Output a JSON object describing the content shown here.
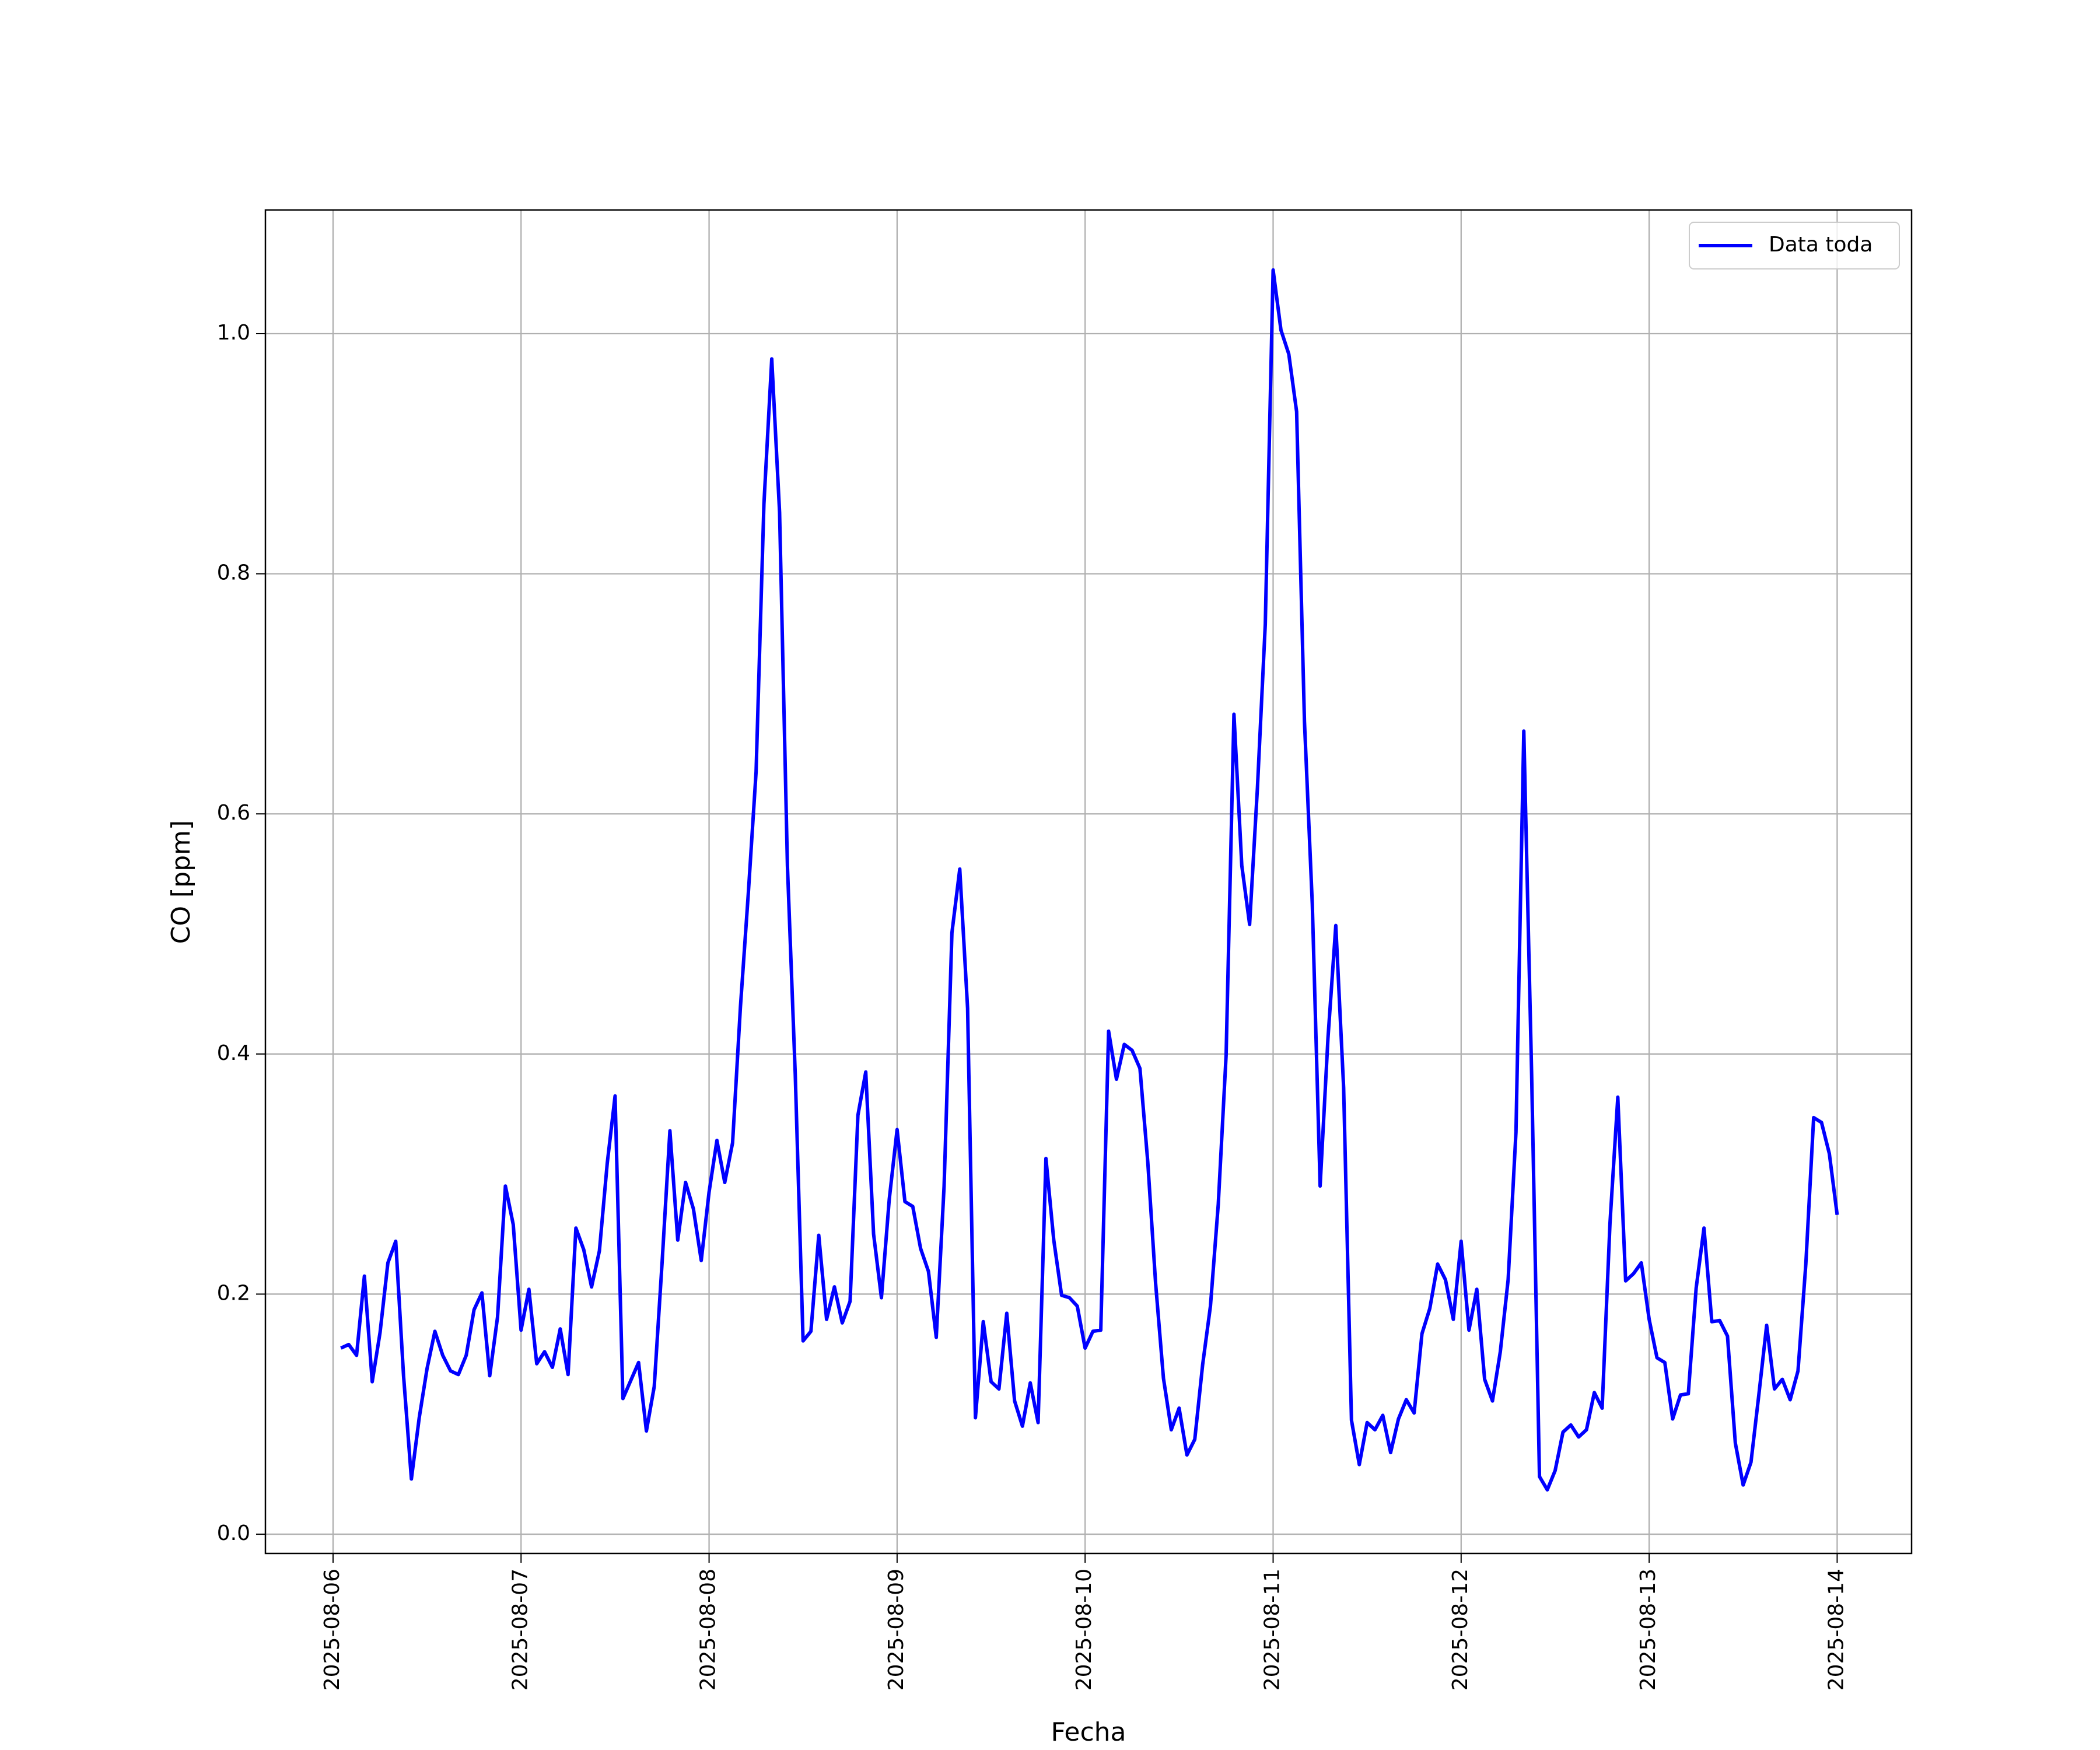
{
  "chart_data": {
    "type": "line",
    "xlabel": "Fecha",
    "ylabel": "CO [ppm]",
    "x": [
      "2025-08-06 01:00",
      "2025-08-06 02:00",
      "2025-08-06 03:00",
      "2025-08-06 04:00",
      "2025-08-06 05:00",
      "2025-08-06 06:00",
      "2025-08-06 07:00",
      "2025-08-06 08:00",
      "2025-08-06 09:00",
      "2025-08-06 10:00",
      "2025-08-06 11:00",
      "2025-08-06 12:00",
      "2025-08-06 13:00",
      "2025-08-06 14:00",
      "2025-08-06 15:00",
      "2025-08-06 16:00",
      "2025-08-06 17:00",
      "2025-08-06 18:00",
      "2025-08-06 19:00",
      "2025-08-06 20:00",
      "2025-08-06 21:00",
      "2025-08-06 22:00",
      "2025-08-06 23:00",
      "2025-08-07 00:00",
      "2025-08-07 01:00",
      "2025-08-07 02:00",
      "2025-08-07 03:00",
      "2025-08-07 04:00",
      "2025-08-07 05:00",
      "2025-08-07 06:00",
      "2025-08-07 07:00",
      "2025-08-07 08:00",
      "2025-08-07 09:00",
      "2025-08-07 10:00",
      "2025-08-07 11:00",
      "2025-08-07 12:00",
      "2025-08-07 13:00",
      "2025-08-07 14:00",
      "2025-08-07 15:00",
      "2025-08-07 16:00",
      "2025-08-07 17:00",
      "2025-08-07 18:00",
      "2025-08-07 19:00",
      "2025-08-07 20:00",
      "2025-08-07 21:00",
      "2025-08-07 22:00",
      "2025-08-07 23:00",
      "2025-08-08 00:00",
      "2025-08-08 01:00",
      "2025-08-08 02:00",
      "2025-08-08 03:00",
      "2025-08-08 04:00",
      "2025-08-08 05:00",
      "2025-08-08 06:00",
      "2025-08-08 07:00",
      "2025-08-08 08:00",
      "2025-08-08 09:00",
      "2025-08-08 10:00",
      "2025-08-08 11:00",
      "2025-08-08 12:00",
      "2025-08-08 13:00",
      "2025-08-08 14:00",
      "2025-08-08 15:00",
      "2025-08-08 16:00",
      "2025-08-08 17:00",
      "2025-08-08 18:00",
      "2025-08-08 19:00",
      "2025-08-08 20:00",
      "2025-08-08 21:00",
      "2025-08-08 22:00",
      "2025-08-08 23:00",
      "2025-08-09 00:00",
      "2025-08-09 01:00",
      "2025-08-09 02:00",
      "2025-08-09 03:00",
      "2025-08-09 04:00",
      "2025-08-09 05:00",
      "2025-08-09 06:00",
      "2025-08-09 07:00",
      "2025-08-09 08:00",
      "2025-08-09 09:00",
      "2025-08-09 10:00",
      "2025-08-09 11:00",
      "2025-08-09 12:00",
      "2025-08-09 13:00",
      "2025-08-09 14:00",
      "2025-08-09 15:00",
      "2025-08-09 16:00",
      "2025-08-09 17:00",
      "2025-08-09 18:00",
      "2025-08-09 19:00",
      "2025-08-09 20:00",
      "2025-08-09 21:00",
      "2025-08-09 22:00",
      "2025-08-09 23:00",
      "2025-08-10 00:00",
      "2025-08-10 01:00",
      "2025-08-10 02:00",
      "2025-08-10 03:00",
      "2025-08-10 04:00",
      "2025-08-10 05:00",
      "2025-08-10 06:00",
      "2025-08-10 07:00",
      "2025-08-10 08:00",
      "2025-08-10 09:00",
      "2025-08-10 10:00",
      "2025-08-10 11:00",
      "2025-08-10 12:00",
      "2025-08-10 13:00",
      "2025-08-10 14:00",
      "2025-08-10 15:00",
      "2025-08-10 16:00",
      "2025-08-10 17:00",
      "2025-08-10 18:00",
      "2025-08-10 19:00",
      "2025-08-10 20:00",
      "2025-08-10 21:00",
      "2025-08-10 22:00",
      "2025-08-10 23:00",
      "2025-08-11 00:00",
      "2025-08-11 01:00",
      "2025-08-11 02:00",
      "2025-08-11 03:00",
      "2025-08-11 04:00",
      "2025-08-11 05:00",
      "2025-08-11 06:00",
      "2025-08-11 07:00",
      "2025-08-11 08:00",
      "2025-08-11 09:00",
      "2025-08-11 10:00",
      "2025-08-11 11:00",
      "2025-08-11 12:00",
      "2025-08-11 13:00",
      "2025-08-11 14:00",
      "2025-08-11 15:00",
      "2025-08-11 16:00",
      "2025-08-11 17:00",
      "2025-08-11 18:00",
      "2025-08-11 19:00",
      "2025-08-11 20:00",
      "2025-08-11 21:00",
      "2025-08-11 22:00",
      "2025-08-11 23:00",
      "2025-08-12 00:00",
      "2025-08-12 01:00",
      "2025-08-12 02:00",
      "2025-08-12 03:00",
      "2025-08-12 04:00",
      "2025-08-12 05:00",
      "2025-08-12 06:00",
      "2025-08-12 07:00",
      "2025-08-12 08:00",
      "2025-08-12 09:00",
      "2025-08-12 10:00",
      "2025-08-12 11:00",
      "2025-08-12 12:00",
      "2025-08-12 13:00",
      "2025-08-12 14:00",
      "2025-08-12 15:00",
      "2025-08-12 16:00",
      "2025-08-12 17:00",
      "2025-08-12 18:00",
      "2025-08-12 19:00",
      "2025-08-12 20:00",
      "2025-08-12 21:00",
      "2025-08-12 22:00",
      "2025-08-12 23:00",
      "2025-08-13 00:00",
      "2025-08-13 01:00",
      "2025-08-13 02:00",
      "2025-08-13 03:00",
      "2025-08-13 04:00",
      "2025-08-13 05:00",
      "2025-08-13 06:00",
      "2025-08-13 07:00",
      "2025-08-13 08:00",
      "2025-08-13 09:00",
      "2025-08-13 10:00",
      "2025-08-13 11:00",
      "2025-08-13 12:00",
      "2025-08-13 13:00",
      "2025-08-13 14:00",
      "2025-08-13 15:00",
      "2025-08-13 16:00",
      "2025-08-13 17:00",
      "2025-08-13 18:00",
      "2025-08-13 19:00",
      "2025-08-13 20:00",
      "2025-08-13 21:00",
      "2025-08-13 22:00",
      "2025-08-13 23:00",
      "2025-08-14 00:00"
    ],
    "series": [
      {
        "name": "Data toda",
        "color": "#0000ff",
        "values": [
          0.155,
          0.158,
          0.149,
          0.215,
          0.127,
          0.168,
          0.226,
          0.244,
          0.132,
          0.046,
          0.097,
          0.138,
          0.169,
          0.149,
          0.136,
          0.133,
          0.149,
          0.187,
          0.201,
          0.132,
          0.181,
          0.29,
          0.258,
          0.17,
          0.204,
          0.142,
          0.152,
          0.139,
          0.171,
          0.133,
          0.255,
          0.237,
          0.206,
          0.236,
          0.309,
          0.365,
          0.113,
          0.128,
          0.143,
          0.086,
          0.123,
          0.226,
          0.336,
          0.245,
          0.293,
          0.271,
          0.228,
          0.285,
          0.328,
          0.293,
          0.326,
          0.439,
          0.533,
          0.635,
          0.858,
          0.979,
          0.851,
          0.557,
          0.383,
          0.161,
          0.169,
          0.249,
          0.179,
          0.206,
          0.176,
          0.194,
          0.349,
          0.385,
          0.25,
          0.197,
          0.279,
          0.337,
          0.277,
          0.273,
          0.238,
          0.219,
          0.164,
          0.29,
          0.501,
          0.554,
          0.438,
          0.097,
          0.177,
          0.127,
          0.121,
          0.184,
          0.111,
          0.09,
          0.126,
          0.093,
          0.313,
          0.245,
          0.199,
          0.197,
          0.19,
          0.155,
          0.169,
          0.17,
          0.419,
          0.379,
          0.408,
          0.403,
          0.388,
          0.31,
          0.209,
          0.13,
          0.087,
          0.105,
          0.066,
          0.079,
          0.141,
          0.19,
          0.275,
          0.399,
          0.683,
          0.557,
          0.508,
          0.622,
          0.758,
          1.053,
          1.003,
          0.983,
          0.935,
          0.677,
          0.525,
          0.29,
          0.413,
          0.507,
          0.372,
          0.095,
          0.058,
          0.093,
          0.087,
          0.099,
          0.068,
          0.096,
          0.112,
          0.101,
          0.167,
          0.188,
          0.225,
          0.212,
          0.179,
          0.244,
          0.17,
          0.204,
          0.129,
          0.111,
          0.152,
          0.212,
          0.335,
          0.669,
          0.383,
          0.048,
          0.037,
          0.053,
          0.085,
          0.091,
          0.081,
          0.087,
          0.118,
          0.105,
          0.259,
          0.364,
          0.211,
          0.217,
          0.226,
          0.179,
          0.147,
          0.143,
          0.096,
          0.116,
          0.117,
          0.205,
          0.255,
          0.177,
          0.178,
          0.165,
          0.076,
          0.041,
          0.06,
          0.116,
          0.174,
          0.121,
          0.129,
          0.112,
          0.136,
          0.225,
          0.347,
          0.343,
          0.317,
          0.266
        ]
      }
    ],
    "xlim": [
      "2025-08-05 15:22",
      "2025-08-14 09:30"
    ],
    "xticks": [
      "2025-08-06",
      "2025-08-07",
      "2025-08-08",
      "2025-08-09",
      "2025-08-10",
      "2025-08-11",
      "2025-08-12",
      "2025-08-13",
      "2025-08-14"
    ],
    "ylim": [
      -0.016,
      1.103
    ],
    "yticks": [
      {
        "value": 0,
        "label": "0.0"
      },
      0.2,
      0.4,
      0.6,
      0.8,
      {
        "value": 1,
        "label": "1.0"
      }
    ],
    "grid": true,
    "legend": "upper right"
  }
}
